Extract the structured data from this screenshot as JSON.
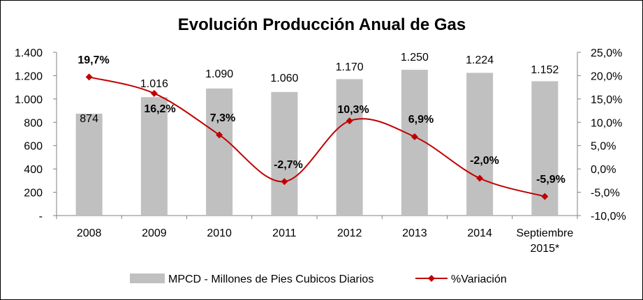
{
  "chart_data": {
    "type": "bar+line",
    "title": "Evolución Producción Anual de Gas",
    "categories": [
      "2008",
      "2009",
      "2010",
      "2011",
      "2012",
      "2013",
      "2014",
      "Septiembre 2015*"
    ],
    "series": [
      {
        "name": "MPCD - Millones de Pies Cubicos Diarios",
        "type": "bar",
        "axis": "left",
        "color": "#c0c0c0",
        "values": [
          874,
          1016,
          1090,
          1060,
          1170,
          1250,
          1224,
          1152
        ],
        "labels": [
          "874",
          "1.016",
          "1.090",
          "1.060",
          "1.170",
          "1.250",
          "1.224",
          "1.152"
        ]
      },
      {
        "name": "%Variación",
        "type": "line",
        "axis": "right",
        "color": "#c00000",
        "values": [
          19.7,
          16.2,
          7.3,
          -2.7,
          10.3,
          6.9,
          -2.0,
          -5.9
        ],
        "labels": [
          "19,7%",
          "16,2%",
          "7,3%",
          "-2,7%",
          "10,3%",
          "6,9%",
          "-2,0%",
          "-5,9%"
        ]
      }
    ],
    "y_left": {
      "min": 0,
      "max": 1400,
      "step": 200,
      "tick_labels": [
        "-",
        "200",
        "400",
        "600",
        "800",
        "1.000",
        "1.200",
        "1.400"
      ]
    },
    "y_right": {
      "min": -10,
      "max": 25,
      "step": 5,
      "tick_labels": [
        "-10,0%",
        "-5,0%",
        "0,0%",
        "5,0%",
        "10,0%",
        "15,0%",
        "20,0%",
        "25,0%"
      ]
    },
    "grid": false,
    "legend": "bottom"
  }
}
